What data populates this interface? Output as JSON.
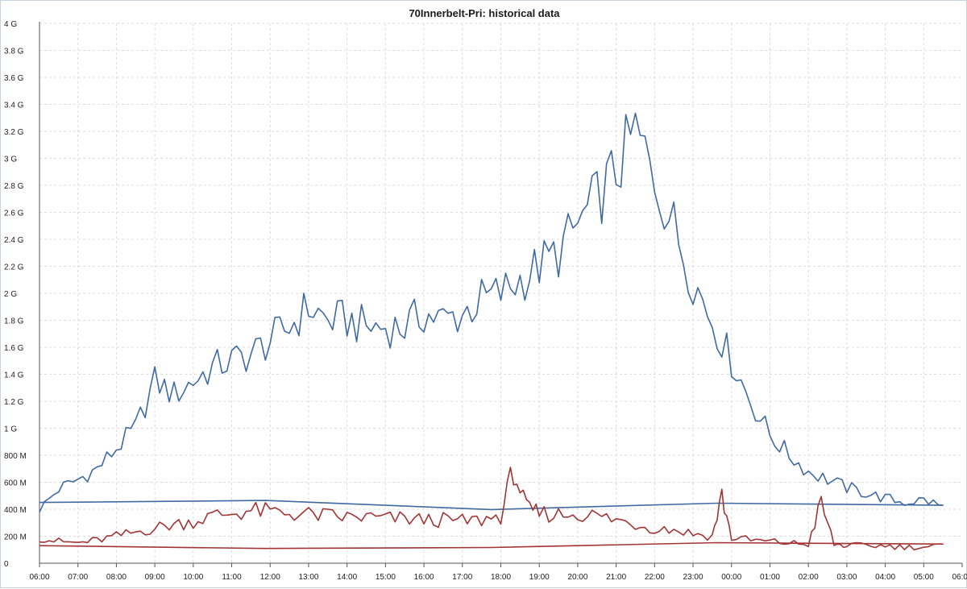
{
  "chart_data": {
    "type": "line",
    "title": "70Innerbelt-Pri: historical data",
    "xlabel": "",
    "ylabel": "",
    "grid": true,
    "legend": "none",
    "ylim": [
      0,
      4000000000
    ],
    "yticks": [
      {
        "value": 0,
        "label": "0"
      },
      {
        "value": 200000000,
        "label": "200 M"
      },
      {
        "value": 400000000,
        "label": "400 M"
      },
      {
        "value": 600000000,
        "label": "600 M"
      },
      {
        "value": 800000000,
        "label": "800 M"
      },
      {
        "value": 1000000000,
        "label": "1 G"
      },
      {
        "value": 1200000000,
        "label": "1.2 G"
      },
      {
        "value": 1400000000,
        "label": "1.4 G"
      },
      {
        "value": 1600000000,
        "label": "1.6 G"
      },
      {
        "value": 1800000000,
        "label": "1.8 G"
      },
      {
        "value": 2000000000,
        "label": "2 G"
      },
      {
        "value": 2200000000,
        "label": "2.2 G"
      },
      {
        "value": 2400000000,
        "label": "2.4 G"
      },
      {
        "value": 2600000000,
        "label": "2.6 G"
      },
      {
        "value": 2800000000,
        "label": "2.8 G"
      },
      {
        "value": 3000000000,
        "label": "3 G"
      },
      {
        "value": 3200000000,
        "label": "3.2 G"
      },
      {
        "value": 3400000000,
        "label": "3.4 G"
      },
      {
        "value": 3600000000,
        "label": "3.6 G"
      },
      {
        "value": 3800000000,
        "label": "3.8 G"
      },
      {
        "value": 4000000000,
        "label": "4 G"
      }
    ],
    "xticks": [
      "06:00",
      "07:00",
      "08:00",
      "09:00",
      "10:00",
      "11:00",
      "12:00",
      "13:00",
      "14:00",
      "15:00",
      "16:00",
      "17:00",
      "18:00",
      "19:00",
      "20:00",
      "21:00",
      "22:00",
      "23:00",
      "00:00",
      "01:00",
      "02:00",
      "03:00",
      "04:00",
      "05:00",
      "06:00"
    ],
    "series": [
      {
        "color": "#3f6aa3",
        "x": [
          "06:00",
          "06:30",
          "07:00",
          "07:30",
          "08:00",
          "08:30",
          "09:00",
          "09:30",
          "10:00",
          "10:30",
          "11:00",
          "11:30",
          "12:00",
          "12:30",
          "13:00",
          "13:30",
          "14:00",
          "14:30",
          "15:00",
          "15:30",
          "16:00",
          "16:30",
          "17:00",
          "17:30",
          "18:00",
          "18:30",
          "19:00",
          "19:30",
          "20:00",
          "20:30",
          "21:00",
          "21:30",
          "22:00",
          "22:30",
          "23:00",
          "23:30",
          "00:00",
          "00:30",
          "01:00",
          "01:30",
          "02:00",
          "02:30",
          "03:00",
          "03:30",
          "04:00",
          "04:30",
          "05:00",
          "05:30",
          "06:00"
        ],
        "values": [
          400000000,
          550000000,
          620000000,
          700000000,
          850000000,
          1000000000,
          1350000000,
          1250000000,
          1350000000,
          1450000000,
          1500000000,
          1550000000,
          1650000000,
          1750000000,
          1900000000,
          1800000000,
          1800000000,
          1750000000,
          1750000000,
          1750000000,
          1850000000,
          1800000000,
          1850000000,
          1950000000,
          2000000000,
          2100000000,
          2200000000,
          2300000000,
          2500000000,
          2700000000,
          2900000000,
          3200000000,
          2850000000,
          2500000000,
          2100000000,
          1800000000,
          1500000000,
          1200000000,
          950000000,
          800000000,
          680000000,
          620000000,
          560000000,
          520000000,
          480000000,
          450000000,
          470000000,
          420000000,
          450000000
        ]
      },
      {
        "color": "#a23434",
        "x": [
          "06:00",
          "06:30",
          "07:00",
          "07:30",
          "08:00",
          "08:30",
          "09:00",
          "09:30",
          "10:00",
          "10:30",
          "11:00",
          "11:30",
          "12:00",
          "12:30",
          "13:00",
          "13:30",
          "14:00",
          "14:30",
          "15:00",
          "15:30",
          "16:00",
          "16:30",
          "17:00",
          "17:30",
          "18:00",
          "18:20",
          "18:40",
          "19:00",
          "19:30",
          "20:00",
          "20:30",
          "21:00",
          "21:30",
          "22:00",
          "22:30",
          "23:00",
          "23:30",
          "23:45",
          "00:00",
          "00:30",
          "01:00",
          "01:30",
          "02:00",
          "02:20",
          "02:40",
          "03:00",
          "03:30",
          "04:00",
          "04:30",
          "05:00",
          "05:30",
          "06:00"
        ],
        "values": [
          190000000,
          160000000,
          150000000,
          170000000,
          200000000,
          230000000,
          260000000,
          290000000,
          310000000,
          350000000,
          370000000,
          390000000,
          380000000,
          370000000,
          360000000,
          350000000,
          340000000,
          340000000,
          330000000,
          330000000,
          320000000,
          320000000,
          310000000,
          320000000,
          350000000,
          700000000,
          400000000,
          370000000,
          360000000,
          370000000,
          350000000,
          320000000,
          290000000,
          260000000,
          250000000,
          220000000,
          200000000,
          500000000,
          190000000,
          170000000,
          160000000,
          150000000,
          140000000,
          450000000,
          140000000,
          130000000,
          130000000,
          130000000,
          120000000,
          120000000,
          130000000,
          130000000
        ]
      }
    ]
  }
}
